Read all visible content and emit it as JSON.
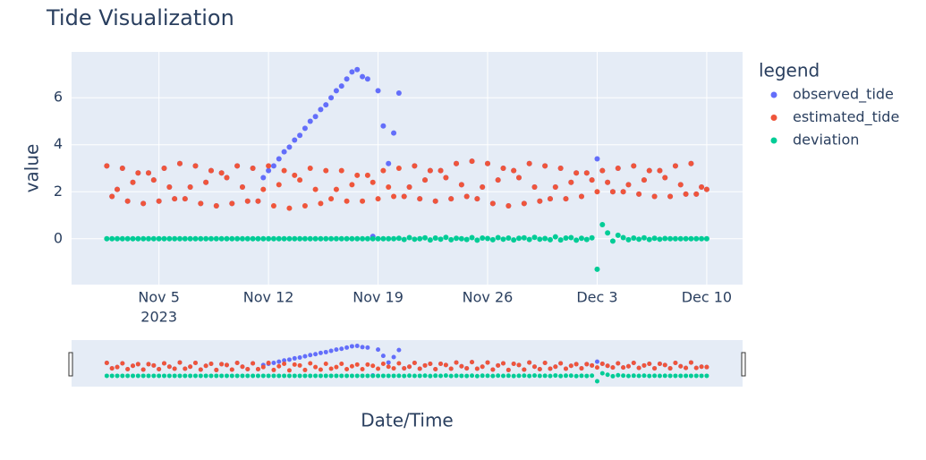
{
  "chart_data": {
    "type": "scatter",
    "title": "Tide Visualization",
    "xlabel": "Date/Time",
    "ylabel": "value",
    "legend_title": "legend",
    "grid": true,
    "legend_position": "right",
    "xlim": [
      "2023-10-30T10:00",
      "2023-12-12T07:00"
    ],
    "ylim": [
      -1.95,
      7.95
    ],
    "yticks": [
      0,
      2,
      4,
      6
    ],
    "xticks": [
      {
        "value": "2023-11-05T00:00",
        "label": "Nov 5"
      },
      {
        "value": "2023-11-12T00:00",
        "label": "Nov 12"
      },
      {
        "value": "2023-11-19T00:00",
        "label": "Nov 19"
      },
      {
        "value": "2023-11-26T00:00",
        "label": "Nov 26"
      },
      {
        "value": "2023-12-03T00:00",
        "label": "Dec 3"
      },
      {
        "value": "2023-12-10T00:00",
        "label": "Dec 10"
      }
    ],
    "x_year": "2023",
    "x": [
      "2023-11-01T16:00",
      "2023-11-02T00:00",
      "2023-11-02T08:00",
      "2023-11-02T16:00",
      "2023-11-03T00:00",
      "2023-11-03T08:00",
      "2023-11-03T16:00",
      "2023-11-04T00:00",
      "2023-11-04T08:00",
      "2023-11-04T16:00",
      "2023-11-05T00:00",
      "2023-11-05T08:00",
      "2023-11-05T16:00",
      "2023-11-06T00:00",
      "2023-11-06T08:00",
      "2023-11-06T16:00",
      "2023-11-07T00:00",
      "2023-11-07T08:00",
      "2023-11-07T16:00",
      "2023-11-08T00:00",
      "2023-11-08T08:00",
      "2023-11-08T16:00",
      "2023-11-09T00:00",
      "2023-11-09T08:00",
      "2023-11-09T16:00",
      "2023-11-10T00:00",
      "2023-11-10T08:00",
      "2023-11-10T16:00",
      "2023-11-11T00:00",
      "2023-11-11T08:00",
      "2023-11-11T16:00",
      "2023-11-12T00:00",
      "2023-11-12T08:00",
      "2023-11-12T16:00",
      "2023-11-13T00:00",
      "2023-11-13T08:00",
      "2023-11-13T16:00",
      "2023-11-14T00:00",
      "2023-11-14T08:00",
      "2023-11-14T16:00",
      "2023-11-15T00:00",
      "2023-11-15T08:00",
      "2023-11-15T16:00",
      "2023-11-16T00:00",
      "2023-11-16T08:00",
      "2023-11-16T16:00",
      "2023-11-17T00:00",
      "2023-11-17T08:00",
      "2023-11-17T16:00",
      "2023-11-18T00:00",
      "2023-11-18T08:00",
      "2023-11-18T16:00",
      "2023-11-19T00:00",
      "2023-11-19T08:00",
      "2023-11-19T16:00",
      "2023-11-20T00:00",
      "2023-11-20T08:00",
      "2023-11-20T16:00",
      "2023-11-21T00:00",
      "2023-11-21T08:00",
      "2023-11-21T16:00",
      "2023-11-22T00:00",
      "2023-11-22T08:00",
      "2023-11-22T16:00",
      "2023-11-23T00:00",
      "2023-11-23T08:00",
      "2023-11-23T16:00",
      "2023-11-24T00:00",
      "2023-11-24T08:00",
      "2023-11-24T16:00",
      "2023-11-25T00:00",
      "2023-11-25T08:00",
      "2023-11-25T16:00",
      "2023-11-26T00:00",
      "2023-11-26T08:00",
      "2023-11-26T16:00",
      "2023-11-27T00:00",
      "2023-11-27T08:00",
      "2023-11-27T16:00",
      "2023-11-28T00:00",
      "2023-11-28T08:00",
      "2023-11-28T16:00",
      "2023-11-29T00:00",
      "2023-11-29T08:00",
      "2023-11-29T16:00",
      "2023-11-30T00:00",
      "2023-11-30T08:00",
      "2023-11-30T16:00",
      "2023-12-01T00:00",
      "2023-12-01T08:00",
      "2023-12-01T16:00",
      "2023-12-02T00:00",
      "2023-12-02T08:00",
      "2023-12-02T16:00",
      "2023-12-03T00:00",
      "2023-12-03T08:00",
      "2023-12-03T16:00",
      "2023-12-04T00:00",
      "2023-12-04T08:00",
      "2023-12-04T16:00",
      "2023-12-05T00:00",
      "2023-12-05T08:00",
      "2023-12-05T16:00",
      "2023-12-06T00:00",
      "2023-12-06T08:00",
      "2023-12-06T16:00",
      "2023-12-07T00:00",
      "2023-12-07T08:00",
      "2023-12-07T16:00",
      "2023-12-08T00:00",
      "2023-12-08T08:00",
      "2023-12-08T16:00",
      "2023-12-09T00:00",
      "2023-12-09T08:00",
      "2023-12-09T16:00",
      "2023-12-10T00:00"
    ],
    "series": [
      {
        "name": "observed_tide",
        "color": "#636efa",
        "values": [
          3.1,
          1.8,
          2.1,
          3.0,
          1.6,
          2.4,
          2.8,
          1.5,
          2.8,
          2.5,
          1.6,
          3.0,
          2.2,
          1.7,
          3.2,
          1.7,
          2.2,
          3.1,
          1.5,
          2.4,
          2.9,
          1.4,
          2.8,
          2.6,
          1.5,
          3.1,
          2.2,
          1.6,
          3.0,
          1.6,
          2.6,
          2.9,
          3.1,
          3.4,
          3.7,
          3.9,
          4.2,
          4.4,
          4.7,
          5.0,
          5.2,
          5.5,
          5.7,
          6.0,
          6.3,
          6.5,
          6.8,
          7.1,
          7.2,
          6.9,
          6.8,
          0.1,
          6.3,
          4.8,
          3.2,
          4.5,
          6.2,
          1.8,
          2.2,
          3.1,
          1.7,
          2.5,
          2.9,
          1.6,
          2.9,
          2.6,
          1.7,
          3.2,
          2.3,
          1.8,
          3.3,
          1.7,
          2.2,
          3.2,
          1.5,
          2.5,
          3.0,
          1.4,
          2.9,
          2.6,
          1.5,
          3.2,
          2.2,
          1.6,
          3.1,
          1.7,
          2.2,
          3.0,
          1.7,
          2.4,
          2.8,
          1.8,
          2.8,
          2.5,
          3.4,
          2.9,
          2.4,
          2.0,
          3.0,
          2.0,
          2.3,
          3.1,
          1.9,
          2.5,
          2.9,
          1.8,
          2.9,
          2.6,
          1.8,
          3.1,
          2.3,
          1.9,
          3.2,
          1.9,
          2.2,
          2.1
        ]
      },
      {
        "name": "estimated_tide",
        "color": "#ef553b",
        "values": [
          3.1,
          1.8,
          2.1,
          3.0,
          1.6,
          2.4,
          2.8,
          1.5,
          2.8,
          2.5,
          1.6,
          3.0,
          2.2,
          1.7,
          3.2,
          1.7,
          2.2,
          3.1,
          1.5,
          2.4,
          2.9,
          1.4,
          2.8,
          2.6,
          1.5,
          3.1,
          2.2,
          1.6,
          3.0,
          1.6,
          2.1,
          3.1,
          1.4,
          2.3,
          2.9,
          1.3,
          2.7,
          2.5,
          1.4,
          3.0,
          2.1,
          1.5,
          2.9,
          1.7,
          2.1,
          2.9,
          1.6,
          2.3,
          2.7,
          1.6,
          2.7,
          2.4,
          1.7,
          2.9,
          2.2,
          1.8,
          3.0,
          1.8,
          2.2,
          3.1,
          1.7,
          2.5,
          2.9,
          1.6,
          2.9,
          2.6,
          1.7,
          3.2,
          2.3,
          1.8,
          3.3,
          1.7,
          2.2,
          3.2,
          1.5,
          2.5,
          3.0,
          1.4,
          2.9,
          2.6,
          1.5,
          3.2,
          2.2,
          1.6,
          3.1,
          1.7,
          2.2,
          3.0,
          1.7,
          2.4,
          2.8,
          1.8,
          2.8,
          2.5,
          2.0,
          2.9,
          2.4,
          2.0,
          3.0,
          2.0,
          2.3,
          3.1,
          1.9,
          2.5,
          2.9,
          1.8,
          2.9,
          2.6,
          1.8,
          3.1,
          2.3,
          1.9,
          3.2,
          1.9,
          2.2,
          2.1
        ]
      },
      {
        "name": "deviation",
        "color": "#00cc96",
        "values": [
          0,
          0,
          0,
          0,
          0,
          0,
          0,
          0,
          0,
          0,
          0,
          0,
          0,
          0,
          0,
          0,
          0,
          0,
          0,
          0,
          0,
          0,
          0,
          0,
          0,
          0,
          0,
          0,
          0,
          0,
          0,
          0,
          0,
          0,
          0,
          0,
          0,
          0,
          0,
          0,
          0,
          0,
          0,
          0,
          0,
          0,
          0,
          0,
          0,
          0,
          0,
          0,
          0,
          0,
          0,
          0,
          0.02,
          -0.03,
          0.05,
          -0.02,
          0,
          0.04,
          -0.05,
          0.03,
          -0.02,
          0.06,
          -0.04,
          0.02,
          0,
          -0.03,
          0.05,
          -0.06,
          0.03,
          0.01,
          -0.04,
          0.05,
          -0.02,
          0.03,
          -0.05,
          0.02,
          0.04,
          -0.03,
          0.06,
          -0.02,
          0.01,
          -0.04,
          0.08,
          -0.05,
          0.03,
          0.05,
          -0.06,
          0.02,
          -0.03,
          0.04,
          -1.3,
          0.6,
          0.25,
          -0.1,
          0.15,
          0.05,
          -0.04,
          0.03,
          -0.02,
          0.04,
          -0.03,
          0.02,
          -0.02,
          0.01,
          0,
          0,
          0,
          0,
          0,
          0,
          0,
          0
        ]
      }
    ]
  }
}
